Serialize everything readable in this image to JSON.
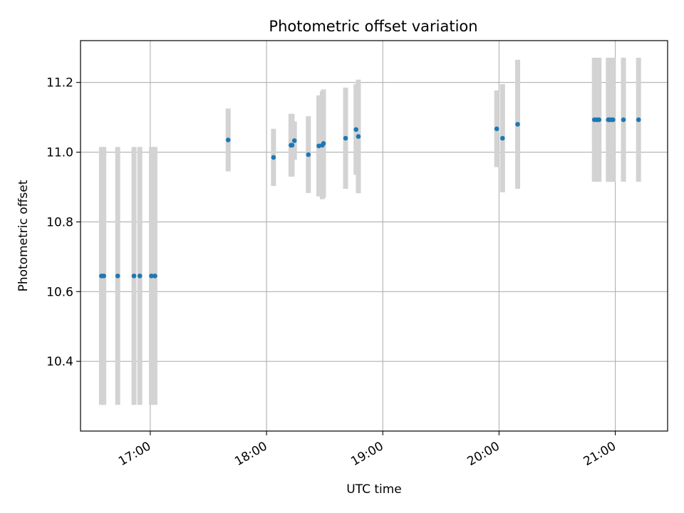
{
  "chart_data": {
    "type": "scatter",
    "title": "Photometric offset variation",
    "xlabel": "UTC time",
    "ylabel": "Photometric offset",
    "x_unit": "hours",
    "xlim": [
      16.4,
      21.45
    ],
    "ylim": [
      10.2,
      11.32
    ],
    "grid": true,
    "x_ticks": [
      {
        "value": 17,
        "label": "17:00"
      },
      {
        "value": 18,
        "label": "18:00"
      },
      {
        "value": 19,
        "label": "19:00"
      },
      {
        "value": 20,
        "label": "20:00"
      },
      {
        "value": 21,
        "label": "21:00"
      }
    ],
    "y_ticks": [
      {
        "value": 10.4,
        "label": "10.4"
      },
      {
        "value": 10.6,
        "label": "10.6"
      },
      {
        "value": 10.8,
        "label": "10.8"
      },
      {
        "value": 11.0,
        "label": "11.0"
      },
      {
        "value": 11.2,
        "label": "11.2"
      }
    ],
    "marker_color": "#1f77b4",
    "errorbar_color": "#d3d3d3",
    "points": [
      {
        "x": 16.58,
        "y": 10.645,
        "err": 0.37
      },
      {
        "x": 16.6,
        "y": 10.645,
        "err": 0.37
      },
      {
        "x": 16.72,
        "y": 10.645,
        "err": 0.37
      },
      {
        "x": 16.86,
        "y": 10.645,
        "err": 0.37
      },
      {
        "x": 16.91,
        "y": 10.645,
        "err": 0.37
      },
      {
        "x": 17.01,
        "y": 10.645,
        "err": 0.37
      },
      {
        "x": 17.04,
        "y": 10.645,
        "err": 0.37
      },
      {
        "x": 17.67,
        "y": 11.035,
        "err": 0.09
      },
      {
        "x": 18.06,
        "y": 10.985,
        "err": 0.082
      },
      {
        "x": 18.21,
        "y": 11.02,
        "err": 0.09
      },
      {
        "x": 18.22,
        "y": 11.02,
        "err": 0.09
      },
      {
        "x": 18.24,
        "y": 11.033,
        "err": 0.055
      },
      {
        "x": 18.36,
        "y": 10.993,
        "err": 0.11
      },
      {
        "x": 18.45,
        "y": 11.018,
        "err": 0.145
      },
      {
        "x": 18.48,
        "y": 11.02,
        "err": 0.155
      },
      {
        "x": 18.49,
        "y": 11.025,
        "err": 0.155
      },
      {
        "x": 18.68,
        "y": 11.04,
        "err": 0.145
      },
      {
        "x": 18.77,
        "y": 11.065,
        "err": 0.13
      },
      {
        "x": 18.79,
        "y": 11.045,
        "err": 0.163
      },
      {
        "x": 19.98,
        "y": 11.067,
        "err": 0.11
      },
      {
        "x": 20.03,
        "y": 11.04,
        "err": 0.155
      },
      {
        "x": 20.16,
        "y": 11.08,
        "err": 0.185
      },
      {
        "x": 20.82,
        "y": 11.093,
        "err": 0.178
      },
      {
        "x": 20.84,
        "y": 11.093,
        "err": 0.178
      },
      {
        "x": 20.86,
        "y": 11.093,
        "err": 0.178
      },
      {
        "x": 20.94,
        "y": 11.093,
        "err": 0.178
      },
      {
        "x": 20.95,
        "y": 11.093,
        "err": 0.178
      },
      {
        "x": 20.97,
        "y": 11.093,
        "err": 0.178
      },
      {
        "x": 20.98,
        "y": 11.093,
        "err": 0.178
      },
      {
        "x": 21.07,
        "y": 11.093,
        "err": 0.178
      },
      {
        "x": 21.2,
        "y": 11.093,
        "err": 0.178
      }
    ]
  }
}
